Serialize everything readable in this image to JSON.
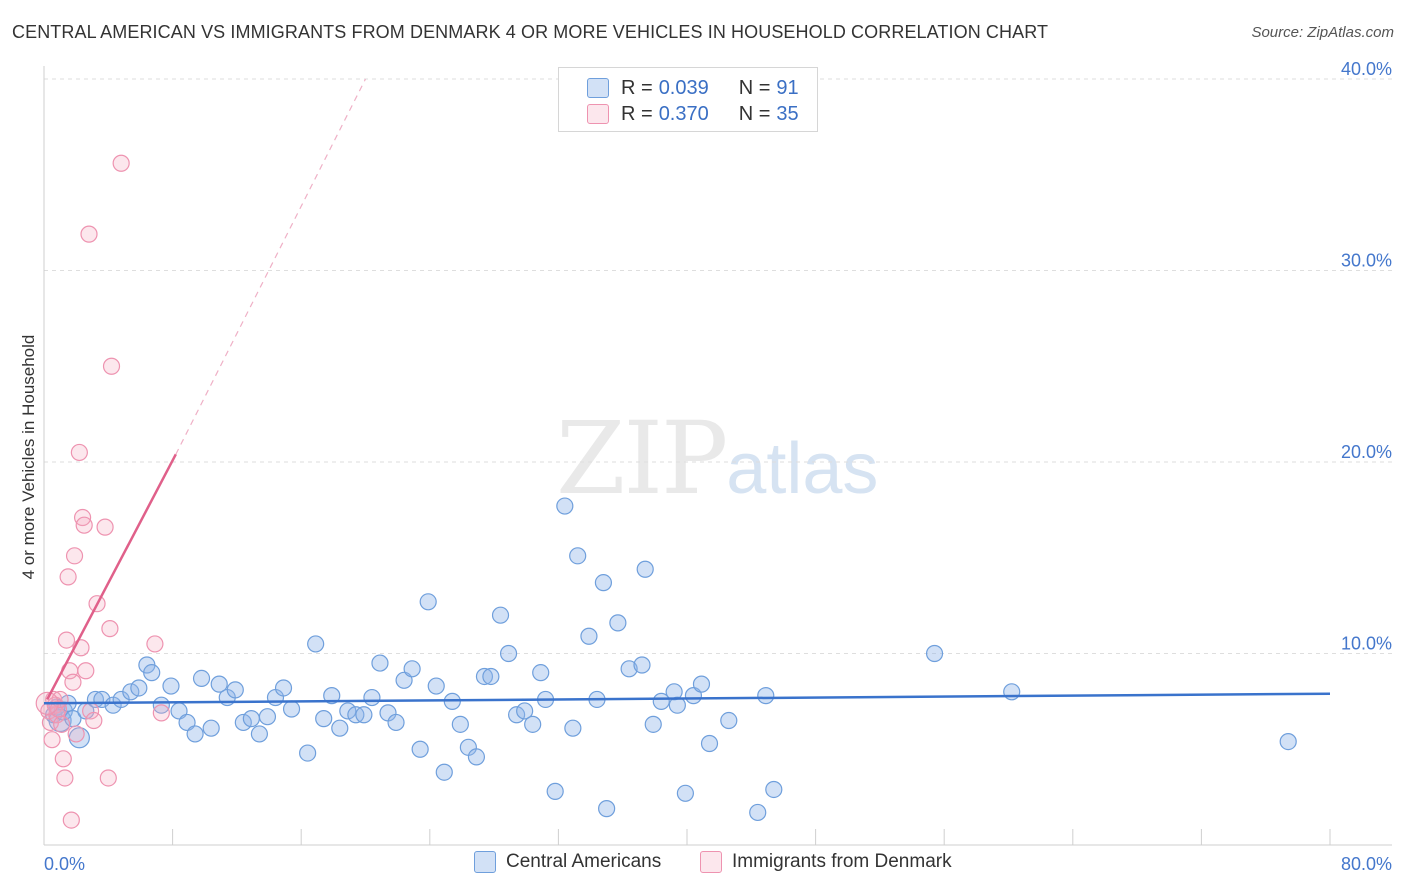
{
  "title": "CENTRAL AMERICAN VS IMMIGRANTS FROM DENMARK 4 OR MORE VEHICLES IN HOUSEHOLD CORRELATION CHART",
  "source": "Source: ZipAtlas.com",
  "watermark": {
    "zip": "ZIP",
    "atlas": "atlas"
  },
  "legend": {
    "r_label": "R =",
    "n_label": "N =",
    "series": [
      {
        "name": "Central Americans",
        "r": "0.039",
        "n": "91",
        "color": "#8fb4e8",
        "line_color": "#3a73cc"
      },
      {
        "name": "Immigrants from Denmark",
        "r": "0.370",
        "n": "35",
        "color": "#f4a8c0",
        "line_color": "#e0608a"
      }
    ]
  },
  "chart_data": {
    "type": "scatter",
    "title": "CENTRAL AMERICAN VS IMMIGRANTS FROM DENMARK 4 OR MORE VEHICLES IN HOUSEHOLD CORRELATION CHART",
    "xlabel": "",
    "ylabel": "4 or more Vehicles in Household",
    "xlim": [
      0,
      80
    ],
    "ylim": [
      0,
      40
    ],
    "x_tick_labels": [
      "0.0%",
      "80.0%"
    ],
    "y_ticks": [
      10,
      20,
      30,
      40
    ],
    "y_tick_labels": [
      "10.0%",
      "20.0%",
      "30.0%",
      "40.0%"
    ],
    "grid": true,
    "series": [
      {
        "name": "Central Americans",
        "color": "#8fb4e8",
        "trend": {
          "x": [
            0,
            80
          ],
          "y": [
            7.4,
            7.9
          ],
          "dashed_extension": false
        },
        "points": [
          [
            0.6,
            6.8
          ],
          [
            0.8,
            7.2
          ],
          [
            1.0,
            6.5
          ],
          [
            1.2,
            7.0
          ],
          [
            1.5,
            7.4
          ],
          [
            1.8,
            6.6
          ],
          [
            2.2,
            5.6
          ],
          [
            2.6,
            7.0
          ],
          [
            3.2,
            7.6
          ],
          [
            3.6,
            7.6
          ],
          [
            4.3,
            7.3
          ],
          [
            4.8,
            7.6
          ],
          [
            5.4,
            8.0
          ],
          [
            5.9,
            8.2
          ],
          [
            6.4,
            9.4
          ],
          [
            6.7,
            9.0
          ],
          [
            7.3,
            7.3
          ],
          [
            7.9,
            8.3
          ],
          [
            8.4,
            7.0
          ],
          [
            8.9,
            6.4
          ],
          [
            9.4,
            5.8
          ],
          [
            9.8,
            8.7
          ],
          [
            10.4,
            6.1
          ],
          [
            10.9,
            8.4
          ],
          [
            11.4,
            7.7
          ],
          [
            11.9,
            8.1
          ],
          [
            12.4,
            6.4
          ],
          [
            12.9,
            6.6
          ],
          [
            13.4,
            5.8
          ],
          [
            13.9,
            6.7
          ],
          [
            14.4,
            7.7
          ],
          [
            14.9,
            8.2
          ],
          [
            15.4,
            7.1
          ],
          [
            16.4,
            4.8
          ],
          [
            16.9,
            10.5
          ],
          [
            17.4,
            6.6
          ],
          [
            17.9,
            7.8
          ],
          [
            18.4,
            6.1
          ],
          [
            18.9,
            7.0
          ],
          [
            19.4,
            6.8
          ],
          [
            19.9,
            6.8
          ],
          [
            20.4,
            7.7
          ],
          [
            20.9,
            9.5
          ],
          [
            21.4,
            6.9
          ],
          [
            21.9,
            6.4
          ],
          [
            22.4,
            8.6
          ],
          [
            22.9,
            9.2
          ],
          [
            23.4,
            5.0
          ],
          [
            23.9,
            12.7
          ],
          [
            24.4,
            8.3
          ],
          [
            24.9,
            3.8
          ],
          [
            25.4,
            7.5
          ],
          [
            25.9,
            6.3
          ],
          [
            26.4,
            5.1
          ],
          [
            26.9,
            4.6
          ],
          [
            27.4,
            8.8
          ],
          [
            27.8,
            8.8
          ],
          [
            28.4,
            12.0
          ],
          [
            28.9,
            10.0
          ],
          [
            29.4,
            6.8
          ],
          [
            29.9,
            7.0
          ],
          [
            30.4,
            6.3
          ],
          [
            30.9,
            9.0
          ],
          [
            31.2,
            7.6
          ],
          [
            31.8,
            2.8
          ],
          [
            32.4,
            17.7
          ],
          [
            32.9,
            6.1
          ],
          [
            33.2,
            15.1
          ],
          [
            33.9,
            10.9
          ],
          [
            34.4,
            7.6
          ],
          [
            34.8,
            13.7
          ],
          [
            35.0,
            1.9
          ],
          [
            35.7,
            11.6
          ],
          [
            36.4,
            9.2
          ],
          [
            37.2,
            9.4
          ],
          [
            37.4,
            14.4
          ],
          [
            37.9,
            6.3
          ],
          [
            38.4,
            7.5
          ],
          [
            39.2,
            8.0
          ],
          [
            39.4,
            7.3
          ],
          [
            39.9,
            2.7
          ],
          [
            40.4,
            7.8
          ],
          [
            40.9,
            8.4
          ],
          [
            41.4,
            5.3
          ],
          [
            42.6,
            6.5
          ],
          [
            44.4,
            1.7
          ],
          [
            44.9,
            7.8
          ],
          [
            45.4,
            2.9
          ],
          [
            55.4,
            10.0
          ],
          [
            60.2,
            8.0
          ],
          [
            77.4,
            5.4
          ]
        ]
      },
      {
        "name": "Immigrants from Denmark",
        "color": "#f4a8c0",
        "trend": {
          "x": [
            0.2,
            8.2
          ],
          "y": [
            7.6,
            20.4
          ],
          "dashed_to": [
            20.0,
            40.0
          ]
        },
        "points": [
          [
            0.3,
            7.0
          ],
          [
            0.4,
            6.4
          ],
          [
            0.5,
            5.5
          ],
          [
            0.6,
            7.6
          ],
          [
            0.7,
            7.3
          ],
          [
            0.8,
            6.8
          ],
          [
            0.9,
            7.1
          ],
          [
            1.0,
            7.6
          ],
          [
            1.1,
            6.3
          ],
          [
            1.2,
            4.5
          ],
          [
            1.3,
            3.5
          ],
          [
            1.4,
            10.7
          ],
          [
            1.5,
            14.0
          ],
          [
            1.6,
            9.1
          ],
          [
            1.7,
            1.3
          ],
          [
            1.8,
            8.5
          ],
          [
            1.9,
            15.1
          ],
          [
            2.0,
            5.8
          ],
          [
            2.2,
            20.5
          ],
          [
            2.3,
            10.3
          ],
          [
            2.4,
            17.1
          ],
          [
            2.5,
            16.7
          ],
          [
            2.6,
            9.1
          ],
          [
            2.8,
            31.9
          ],
          [
            2.9,
            7.0
          ],
          [
            3.1,
            6.5
          ],
          [
            3.3,
            12.6
          ],
          [
            3.8,
            16.6
          ],
          [
            4.0,
            3.5
          ],
          [
            4.1,
            11.3
          ],
          [
            4.2,
            25.0
          ],
          [
            4.8,
            35.6
          ],
          [
            6.9,
            10.5
          ],
          [
            7.3,
            6.9
          ],
          [
            0.2,
            7.4
          ]
        ]
      }
    ]
  }
}
